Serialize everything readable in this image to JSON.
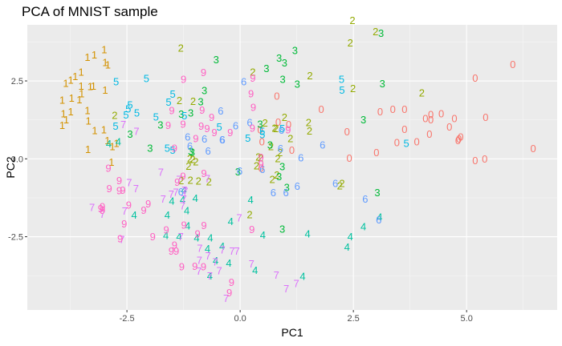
{
  "chart_data": {
    "type": "scatter",
    "title": "PCA of MNIST sample",
    "xlabel": "PC1",
    "ylabel": "PC2",
    "xlim": [
      -4.7,
      7.0
    ],
    "ylim": [
      -4.85,
      4.3
    ],
    "x_ticks": [
      -2.5,
      0.0,
      2.5,
      5.0
    ],
    "x_tick_labels": [
      "-2.5",
      "0.0",
      "2.5",
      "5.0"
    ],
    "y_ticks": [
      -2.5,
      0.0,
      2.5
    ],
    "y_tick_labels": [
      "-2.5",
      "0.0",
      "2.5"
    ],
    "grid": true,
    "background": "#ebebeb",
    "legend": "none",
    "marker": "digit label",
    "series": [
      {
        "label": "0",
        "color": "#F8766D",
        "points": [
          [
            6.02,
            3.04
          ],
          [
            6.47,
            0.34
          ],
          [
            5.19,
            2.6
          ],
          [
            5.42,
            1.34
          ],
          [
            5.19,
            -0.05
          ],
          [
            5.4,
            0.01
          ],
          [
            4.81,
            0.6
          ],
          [
            4.87,
            0.71
          ],
          [
            4.83,
            0.65
          ],
          [
            4.73,
            1.31
          ],
          [
            4.44,
            1.46
          ],
          [
            4.62,
            1.04
          ],
          [
            4.21,
            1.43
          ],
          [
            4.21,
            1.27
          ],
          [
            4.09,
            1.31
          ],
          [
            4.18,
            0.8
          ],
          [
            3.9,
            0.56
          ],
          [
            3.63,
            1.6
          ],
          [
            3.37,
            1.6
          ],
          [
            3.63,
            0.96
          ],
          [
            3.46,
            0.53
          ],
          [
            3.09,
            1.53
          ],
          [
            3.01,
            0.21
          ],
          [
            2.36,
            0.88
          ],
          [
            2.41,
            0.03
          ],
          [
            1.79,
            1.6
          ],
          [
            1.07,
            1.11
          ],
          [
            1.14,
            0.29
          ],
          [
            0.84,
            1.19
          ],
          [
            0.81,
            2.03
          ],
          [
            0.44,
            0.94
          ],
          [
            0.48,
            0.56
          ],
          [
            0.46,
            -0.29
          ]
        ]
      },
      {
        "label": "1",
        "color": "#D39200",
        "points": [
          [
            -3.0,
            3.52
          ],
          [
            -2.98,
            3.11
          ],
          [
            -2.92,
            3.03
          ],
          [
            -2.98,
            2.22
          ],
          [
            -3.37,
            3.27
          ],
          [
            -3.22,
            3.35
          ],
          [
            -3.24,
            2.35
          ],
          [
            -3.31,
            2.33
          ],
          [
            -3.51,
            2.79
          ],
          [
            -3.64,
            2.66
          ],
          [
            -3.74,
            2.54
          ],
          [
            -3.51,
            2.35
          ],
          [
            -3.5,
            2.1
          ],
          [
            -3.85,
            2.44
          ],
          [
            -3.72,
            1.96
          ],
          [
            -3.55,
            1.91
          ],
          [
            -3.74,
            1.52
          ],
          [
            -3.93,
            1.9
          ],
          [
            -3.9,
            1.46
          ],
          [
            -3.84,
            1.27
          ],
          [
            -3.93,
            1.09
          ],
          [
            -3.37,
            1.56
          ],
          [
            -3.35,
            1.23
          ],
          [
            -3.21,
            0.92
          ],
          [
            -3.01,
            0.95
          ],
          [
            -3.36,
            0.31
          ],
          [
            -2.82,
            0.41
          ],
          [
            -2.84,
            -0.1
          ],
          [
            -2.73,
            0.51
          ],
          [
            -2.93,
            0.6
          ]
        ]
      },
      {
        "label": "2",
        "color": "#93AA00",
        "points": [
          [
            2.48,
            4.46
          ],
          [
            2.43,
            3.73
          ],
          [
            2.99,
            4.09
          ],
          [
            1.54,
            2.68
          ],
          [
            -1.31,
            3.57
          ],
          [
            0.28,
            2.8
          ],
          [
            -1.34,
            1.89
          ],
          [
            -1.04,
            1.86
          ],
          [
            -2.77,
            1.41
          ],
          [
            2.49,
            2.27
          ],
          [
            4.01,
            2.13
          ],
          [
            1.51,
            1.18
          ],
          [
            1.53,
            0.91
          ],
          [
            0.98,
            1.35
          ],
          [
            0.76,
            1.0
          ],
          [
            0.45,
            0.05
          ],
          [
            0.68,
            0.4
          ],
          [
            0.36,
            -0.21
          ],
          [
            0.88,
            0.21
          ],
          [
            0.55,
            1.16
          ],
          [
            0.83,
            0.02
          ],
          [
            0.81,
            -0.5
          ],
          [
            0.71,
            -0.65
          ],
          [
            0.79,
            0.99
          ],
          [
            1.11,
            0.66
          ],
          [
            0.21,
            -1.78
          ],
          [
            -1.05,
            0.0
          ],
          [
            -0.98,
            -0.08
          ],
          [
            -1.14,
            -0.22
          ],
          [
            -1.11,
            0.02
          ],
          [
            -0.69,
            -0.72
          ],
          [
            -1.3,
            -0.69
          ],
          [
            -1.1,
            -0.67
          ],
          [
            -0.92,
            -0.7
          ],
          [
            2.25,
            -0.77
          ],
          [
            2.2,
            -0.85
          ],
          [
            0.4,
            0.07
          ]
        ]
      },
      {
        "label": "3",
        "color": "#00BA38",
        "points": [
          [
            3.11,
            4.04
          ],
          [
            1.21,
            3.49
          ],
          [
            0.58,
            2.91
          ],
          [
            0.86,
            3.25
          ],
          [
            -0.53,
            3.19
          ],
          [
            0.98,
            3.09
          ],
          [
            0.94,
            2.57
          ],
          [
            1.26,
            2.41
          ],
          [
            3.14,
            2.42
          ],
          [
            2.72,
            1.27
          ],
          [
            -0.79,
            2.21
          ],
          [
            -0.87,
            1.84
          ],
          [
            -1.09,
            1.48
          ],
          [
            -1.3,
            1.45
          ],
          [
            -1.76,
            1.1
          ],
          [
            -1.99,
            0.36
          ],
          [
            -2.43,
            0.81
          ],
          [
            -1.09,
            0.25
          ],
          [
            -1.06,
            0.23
          ],
          [
            0.44,
            1.12
          ],
          [
            0.66,
            0.46
          ],
          [
            0.93,
            -0.24
          ],
          [
            0.86,
            -0.56
          ],
          [
            1.03,
            -0.91
          ],
          [
            3.03,
            -1.07
          ],
          [
            0.93,
            -2.24
          ],
          [
            -0.05,
            -0.4
          ]
        ]
      },
      {
        "label": "4",
        "color": "#00C19F",
        "points": [
          [
            -2.69,
            0.56
          ],
          [
            -2.9,
            0.5
          ],
          [
            -2.34,
            -1.79
          ],
          [
            -1.61,
            -1.79
          ],
          [
            -1.51,
            -1.34
          ],
          [
            -1.27,
            -1.3
          ],
          [
            -1.16,
            -2.14
          ],
          [
            -1.64,
            -2.45
          ],
          [
            -0.96,
            -2.53
          ],
          [
            -0.72,
            -2.87
          ],
          [
            -0.67,
            -3.75
          ],
          [
            -0.66,
            -2.53
          ],
          [
            -0.4,
            -2.8
          ],
          [
            -0.54,
            -3.26
          ],
          [
            -0.25,
            -3.33
          ],
          [
            -0.21,
            -2.0
          ],
          [
            0.33,
            -3.57
          ],
          [
            -1.18,
            -1.65
          ],
          [
            -0.99,
            -1.25
          ],
          [
            1.38,
            -3.76
          ],
          [
            1.49,
            -2.4
          ],
          [
            2.72,
            -2.16
          ],
          [
            3.08,
            -1.86
          ],
          [
            2.43,
            -2.48
          ],
          [
            2.36,
            -2.82
          ],
          [
            0.5,
            -2.44
          ],
          [
            0.23,
            -1.3
          ],
          [
            -1.35,
            -2.49
          ],
          [
            -1.24,
            -0.99
          ]
        ]
      },
      {
        "label": "5",
        "color": "#00B9E3",
        "points": [
          [
            -2.28,
            1.48
          ],
          [
            -2.43,
            1.74
          ],
          [
            -2.47,
            1.61
          ],
          [
            -2.74,
            2.49
          ],
          [
            -2.52,
            1.42
          ],
          [
            -2.75,
            1.06
          ],
          [
            -1.49,
            2.09
          ],
          [
            -2.07,
            2.59
          ],
          [
            -1.23,
            1.4
          ],
          [
            -1.58,
            1.83
          ],
          [
            -1.61,
            0.35
          ],
          [
            -1.86,
            1.36
          ],
          [
            -1.49,
            0.29
          ],
          [
            2.24,
            2.57
          ],
          [
            2.25,
            2.22
          ],
          [
            3.67,
            0.51
          ],
          [
            0.49,
            0.9
          ],
          [
            0.49,
            0.79
          ],
          [
            0.17,
            0.67
          ],
          [
            -0.46,
            1.04
          ],
          [
            0.93,
            0.99
          ]
        ]
      },
      {
        "label": "6",
        "color": "#619CFF",
        "points": [
          [
            0.08,
            2.49
          ],
          [
            -0.43,
            1.55
          ],
          [
            -0.1,
            1.07
          ],
          [
            -0.4,
            0.62
          ],
          [
            -1.16,
            0.71
          ],
          [
            -0.79,
            0.65
          ],
          [
            -0.71,
            0.26
          ],
          [
            0.21,
            1.18
          ],
          [
            0.49,
            -0.33
          ],
          [
            0.89,
            0.34
          ],
          [
            0.91,
            0.93
          ],
          [
            1.34,
            0.05
          ],
          [
            1.26,
            -0.87
          ],
          [
            1.01,
            -1.07
          ],
          [
            0.73,
            -1.07
          ],
          [
            1.82,
            0.46
          ],
          [
            2.1,
            -0.78
          ],
          [
            2.76,
            -1.28
          ],
          [
            3.06,
            -1.94
          ],
          [
            -1.31,
            -1.04
          ],
          [
            -0.39,
            0.62
          ],
          [
            -1.11,
            0.42
          ],
          [
            -0.01,
            -0.38
          ]
        ]
      },
      {
        "label": "7",
        "color": "#DB72FB",
        "points": [
          [
            -2.58,
            1.11
          ],
          [
            -2.29,
            0.89
          ],
          [
            -1.75,
            -0.41
          ],
          [
            -1.52,
            -1.12
          ],
          [
            -1.7,
            -1.28
          ],
          [
            -2.45,
            -0.75
          ],
          [
            -2.3,
            -0.94
          ],
          [
            -1.35,
            -0.65
          ],
          [
            -1.42,
            -1.06
          ],
          [
            -1.21,
            -1.03
          ],
          [
            -1.23,
            -1.0
          ],
          [
            -0.72,
            -0.62
          ],
          [
            -1.31,
            -2.49
          ],
          [
            -0.89,
            -2.86
          ],
          [
            -0.9,
            -3.24
          ],
          [
            -0.71,
            -3.1
          ],
          [
            -0.91,
            -3.59
          ],
          [
            -0.39,
            -2.91
          ],
          [
            -0.67,
            -3.74
          ],
          [
            -0.46,
            -3.58
          ],
          [
            -0.55,
            -3.29
          ],
          [
            -0.18,
            -2.95
          ],
          [
            -0.07,
            -2.95
          ],
          [
            -2.55,
            -1.66
          ],
          [
            -3.04,
            -1.76
          ],
          [
            -2.61,
            -2.58
          ],
          [
            -3.27,
            -1.55
          ],
          [
            -0.02,
            -1.88
          ],
          [
            0.25,
            -3.36
          ],
          [
            0.8,
            -3.72
          ],
          [
            1.24,
            -3.99
          ],
          [
            1.02,
            -4.16
          ],
          [
            -0.31,
            -4.46
          ],
          [
            -1.27,
            -1.49
          ],
          [
            -1.24,
            -1.28
          ]
        ]
      },
      {
        "label": "9",
        "color": "#FF61C3",
        "points": [
          [
            -1.25,
            2.57
          ],
          [
            -0.81,
            2.78
          ],
          [
            -1.51,
            1.56
          ],
          [
            -1.59,
            1.09
          ],
          [
            -0.86,
            1.06
          ],
          [
            -0.73,
            0.98
          ],
          [
            -0.63,
            1.35
          ],
          [
            -0.22,
            0.86
          ],
          [
            -0.57,
            0.86
          ],
          [
            -0.98,
            0.66
          ],
          [
            -1.26,
            1.12
          ],
          [
            -1.45,
            0.36
          ],
          [
            -0.84,
            1.58
          ],
          [
            0.28,
            2.61
          ],
          [
            0.24,
            2.1
          ],
          [
            0.29,
            1.66
          ],
          [
            0.27,
            1.0
          ],
          [
            0.46,
            0.06
          ],
          [
            1.06,
            0.95
          ],
          [
            -2.91,
            -0.29
          ],
          [
            -2.67,
            -0.68
          ],
          [
            -2.59,
            -0.99
          ],
          [
            -2.89,
            -0.94
          ],
          [
            -2.67,
            -1.01
          ],
          [
            -3.04,
            -1.52
          ],
          [
            -3.08,
            -1.59
          ],
          [
            -3.04,
            -1.64
          ],
          [
            -2.13,
            -1.64
          ],
          [
            -2.46,
            -1.47
          ],
          [
            -2.03,
            -1.43
          ],
          [
            -2.56,
            -2.07
          ],
          [
            -2.65,
            -2.55
          ],
          [
            -1.63,
            -2.27
          ],
          [
            -1.93,
            -2.49
          ],
          [
            -1.45,
            -2.75
          ],
          [
            -1.41,
            -2.95
          ],
          [
            -1.24,
            -2.11
          ],
          [
            -0.94,
            -2.39
          ],
          [
            -0.8,
            -2.12
          ],
          [
            -1.29,
            -3.45
          ],
          [
            -1.0,
            -3.44
          ],
          [
            -0.81,
            -3.45
          ],
          [
            -0.19,
            -3.95
          ],
          [
            -0.24,
            -4.28
          ],
          [
            -1.52,
            -2.95
          ],
          [
            0.26,
            -2.26
          ],
          [
            -1.39,
            -0.74
          ],
          [
            -1.26,
            -0.55
          ],
          [
            -0.8,
            -0.46
          ],
          [
            0.46,
            -0.16
          ]
        ]
      }
    ]
  }
}
